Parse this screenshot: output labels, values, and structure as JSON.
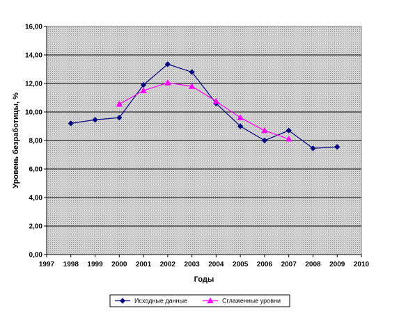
{
  "chart_data": {
    "type": "line",
    "title": "",
    "xlabel": "Годы",
    "ylabel": "Уровень безработицы, %",
    "xlim": [
      1997,
      2010
    ],
    "ylim": [
      0,
      16
    ],
    "x_ticks": [
      "1997",
      "1998",
      "1999",
      "2000",
      "2001",
      "2002",
      "2003",
      "2004",
      "2005",
      "2006",
      "2007",
      "2008",
      "2009",
      "2010"
    ],
    "y_ticks": [
      "0,00",
      "2,00",
      "4,00",
      "6,00",
      "8,00",
      "10,00",
      "12,00",
      "14,00",
      "16,00"
    ],
    "grid": true,
    "legend_position": "bottom",
    "series": [
      {
        "name": "Исходные данные",
        "color": "#000080",
        "marker": "diamond",
        "x": [
          1998,
          1999,
          2000,
          2001,
          2002,
          2003,
          2004,
          2005,
          2006,
          2007,
          2008,
          2009
        ],
        "values": [
          9.2,
          9.45,
          9.6,
          11.9,
          13.35,
          12.8,
          10.6,
          9.0,
          8.0,
          8.7,
          7.45,
          7.55
        ]
      },
      {
        "name": "Сглаженные уровни",
        "color": "#ff00ff",
        "marker": "triangle",
        "x": [
          2000,
          2001,
          2002,
          2003,
          2004,
          2005,
          2006,
          2007
        ],
        "values": [
          10.55,
          11.5,
          12.05,
          11.8,
          10.75,
          9.6,
          8.7,
          8.1
        ]
      }
    ]
  }
}
